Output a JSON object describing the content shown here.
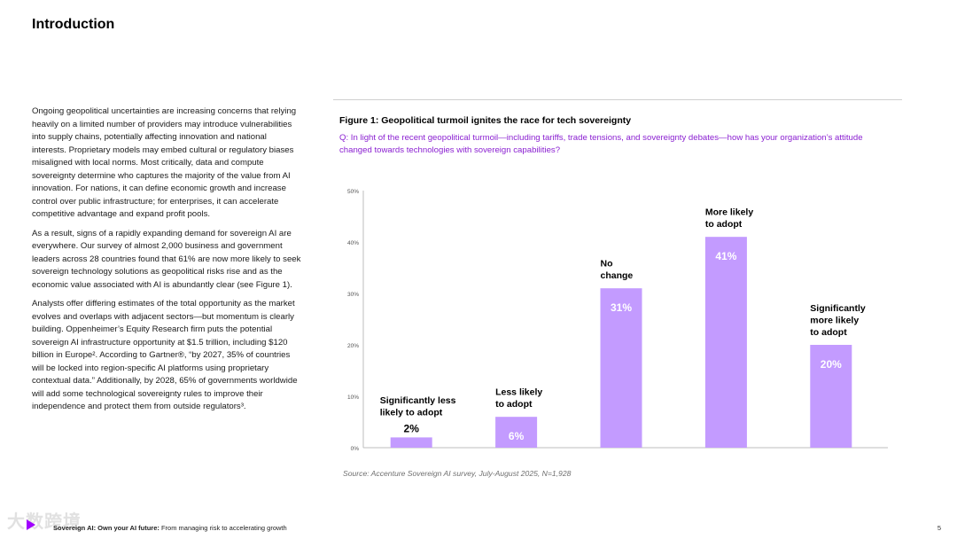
{
  "page": {
    "title": "Introduction",
    "paragraphs": [
      "Ongoing geopolitical uncertainties are increasing concerns that relying heavily on a limited number of providers may introduce vulnerabilities into supply chains, potentially affecting innovation and national interests. Proprietary models may embed cultural or regulatory biases misaligned with local norms. Most critically, data and compute sovereignty determine who captures the majority of the value from AI innovation. For nations, it can define economic growth and increase control over public infrastructure; for enterprises, it can accelerate competitive advantage and expand profit pools.",
      "As a result, signs of a rapidly expanding demand for sovereign AI are everywhere. Our survey of almost 2,000 business and government leaders across 28 countries found that 61% are now more likely to seek sovereign technology solutions as geopolitical risks rise and as the economic value associated with AI is abundantly clear (see Figure 1).",
      "Analysts offer differing estimates of the total opportunity as the market evolves and overlaps with adjacent sectors—but momentum is clearly building. Oppenheimer’s Equity Research firm puts the potential sovereign AI infrastructure opportunity at $1.5 trillion, including $120 billion in Europe². According to Gartner®, “by 2027, 35% of countries will be locked into region-specific AI platforms using proprietary contextual data.” Additionally, by 2028, 65% of governments worldwide will add some technological sovereignty rules to improve their independence and protect them from outside regulators³."
    ]
  },
  "figure": {
    "title": "Figure 1: Geopolitical turmoil ignites the race for tech sovereignty",
    "question": "Q: In light of the recent geopolitical turmoil—including tariffs, trade tensions, and sovereignty debates—how has your organization’s attitude changed towards technologies with sovereign capabilities?",
    "source": "Source: Accenture Sovereign AI survey, July-August 2025, N=1,928"
  },
  "chart_data": {
    "type": "bar",
    "title": "Figure 1: Geopolitical turmoil ignites the race for tech sovereignty",
    "categories": [
      [
        "Significantly less",
        "likely to adopt"
      ],
      [
        "Less likely",
        "to adopt"
      ],
      [
        "No",
        "change"
      ],
      [
        "More likely",
        "to adopt"
      ],
      [
        "Significantly",
        "more likely",
        "to adopt"
      ]
    ],
    "values": [
      2,
      6,
      31,
      41,
      20
    ],
    "value_labels": [
      "2%",
      "6%",
      "31%",
      "41%",
      "20%"
    ],
    "yticks": [
      0,
      10,
      20,
      30,
      40,
      50
    ],
    "ytick_labels": [
      "0%",
      "10%",
      "20%",
      "30%",
      "40%",
      "50%"
    ],
    "ylim": [
      0,
      50
    ],
    "xlabel": "",
    "ylabel": "",
    "grid": false,
    "bar_color": "#c39bff",
    "label_color": "#ffffff",
    "small_label_color": "#000000"
  },
  "footer": {
    "bold": "Sovereign AI: Own your AI future:",
    "text": " From managing risk to accelerating growth",
    "page_number": "5",
    "watermark": "大数跨境"
  },
  "colors": {
    "accent": "#a100ff",
    "question": "#8a1fd1"
  }
}
